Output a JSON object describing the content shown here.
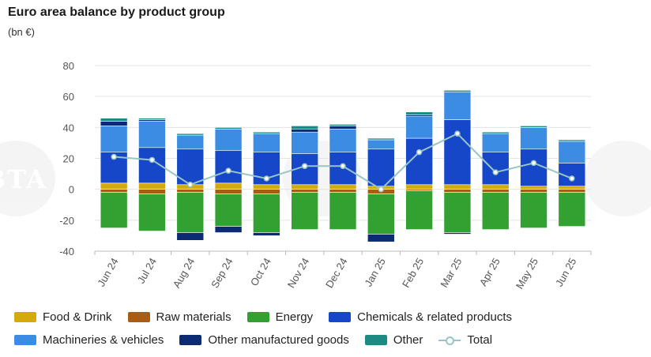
{
  "title": "Euro area balance by product group",
  "subtitle": "(bn €)",
  "watermark": "BTA",
  "chart_data": {
    "type": "bar",
    "stacked": true,
    "categories": [
      "Jun 24",
      "Jul 24",
      "Aug 24",
      "Sep 24",
      "Oct 24",
      "Nov 24",
      "Dec 24",
      "Jan 25",
      "Feb 25",
      "Mar 25",
      "Apr 25",
      "May 25",
      "Jun 25"
    ],
    "ylim": [
      -40,
      80
    ],
    "yticks": [
      -40,
      -20,
      0,
      20,
      40,
      60,
      80
    ],
    "grid": true,
    "legend_position": "bottom",
    "series": [
      {
        "name": "Food & Drink",
        "color": "#d4a90c",
        "values": [
          4,
          4,
          3,
          4,
          3,
          3,
          3,
          2,
          3,
          3,
          3,
          2,
          2
        ]
      },
      {
        "name": "Raw materials",
        "color": "#a85c14",
        "values": [
          -2,
          -3,
          -2,
          -3,
          -3,
          -2,
          -2,
          -3,
          -1,
          -2,
          -2,
          -2,
          -2
        ]
      },
      {
        "name": "Energy",
        "color": "#32a132",
        "values": [
          -23,
          -24,
          -26,
          -21,
          -25,
          -24,
          -24,
          -26,
          -25,
          -26,
          -24,
          -23,
          -22
        ]
      },
      {
        "name": "Chemicals & related products",
        "color": "#1547c8",
        "values": [
          20,
          23,
          23,
          21,
          21,
          20,
          21,
          24,
          30,
          42,
          21,
          24,
          15
        ]
      },
      {
        "name": "Machineries & vehicles",
        "color": "#3c8ce4",
        "values": [
          17,
          17,
          9,
          14,
          12,
          14,
          15,
          6,
          14,
          18,
          12,
          14,
          14
        ]
      },
      {
        "name": "Other manufactured goods",
        "color": "#0b2c72",
        "values": [
          3,
          1,
          -5,
          -4,
          -2,
          2,
          2,
          -5,
          1,
          -1,
          0,
          0,
          0
        ]
      },
      {
        "name": "Other",
        "color": "#1e8a84",
        "values": [
          2,
          1,
          1,
          1,
          1,
          2,
          1,
          1,
          2,
          1,
          1,
          1,
          1
        ]
      }
    ],
    "line_series": {
      "name": "Total",
      "color": "#98c5c5",
      "values": [
        21,
        19,
        3,
        12,
        7,
        15,
        15,
        0,
        24,
        36,
        11,
        17,
        7
      ]
    }
  }
}
